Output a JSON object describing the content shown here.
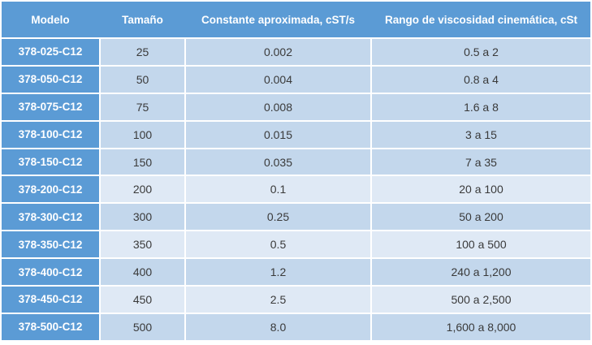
{
  "table": {
    "columns": [
      {
        "label": "Modelo"
      },
      {
        "label": "Tamaño"
      },
      {
        "label": "Constante aproximada, cST/s"
      },
      {
        "label": "Rango de viscosidad cinemática, cSt"
      }
    ],
    "rows": [
      {
        "modelo": "378-025-C12",
        "tamano": "25",
        "constante": "0.002",
        "rango": "0.5 a 2",
        "shade": "dark"
      },
      {
        "modelo": "378-050-C12",
        "tamano": "50",
        "constante": "0.004",
        "rango": "0.8 a 4",
        "shade": "dark"
      },
      {
        "modelo": "378-075-C12",
        "tamano": "75",
        "constante": "0.008",
        "rango": "1.6 a 8",
        "shade": "dark"
      },
      {
        "modelo": "378-100-C12",
        "tamano": "100",
        "constante": "0.015",
        "rango": "3 a 15",
        "shade": "dark"
      },
      {
        "modelo": "378-150-C12",
        "tamano": "150",
        "constante": "0.035",
        "rango": "7 a 35",
        "shade": "dark"
      },
      {
        "modelo": "378-200-C12",
        "tamano": "200",
        "constante": "0.1",
        "rango": "20 a 100",
        "shade": "light"
      },
      {
        "modelo": "378-300-C12",
        "tamano": "300",
        "constante": "0.25",
        "rango": "50 a 200",
        "shade": "dark"
      },
      {
        "modelo": "378-350-C12",
        "tamano": "350",
        "constante": "0.5",
        "rango": "100 a 500",
        "shade": "light"
      },
      {
        "modelo": "378-400-C12",
        "tamano": "400",
        "constante": "1.2",
        "rango": "240 a 1,200",
        "shade": "dark"
      },
      {
        "modelo": "378-450-C12",
        "tamano": "450",
        "constante": "2.5",
        "rango": "500 a 2,500",
        "shade": "light"
      },
      {
        "modelo": "378-500-C12",
        "tamano": "500",
        "constante": "8.0",
        "rango": "1,600 a 8,000",
        "shade": "dark"
      }
    ],
    "colors": {
      "header_bg": "#5b9bd5",
      "model_col_bg": "#5b9bd5",
      "row_dark_bg": "#c3d7ec",
      "row_light_bg": "#dfe9f5",
      "header_text": "#ffffff",
      "cell_text": "#3a3a3a",
      "gridline": "#ffffff"
    }
  }
}
